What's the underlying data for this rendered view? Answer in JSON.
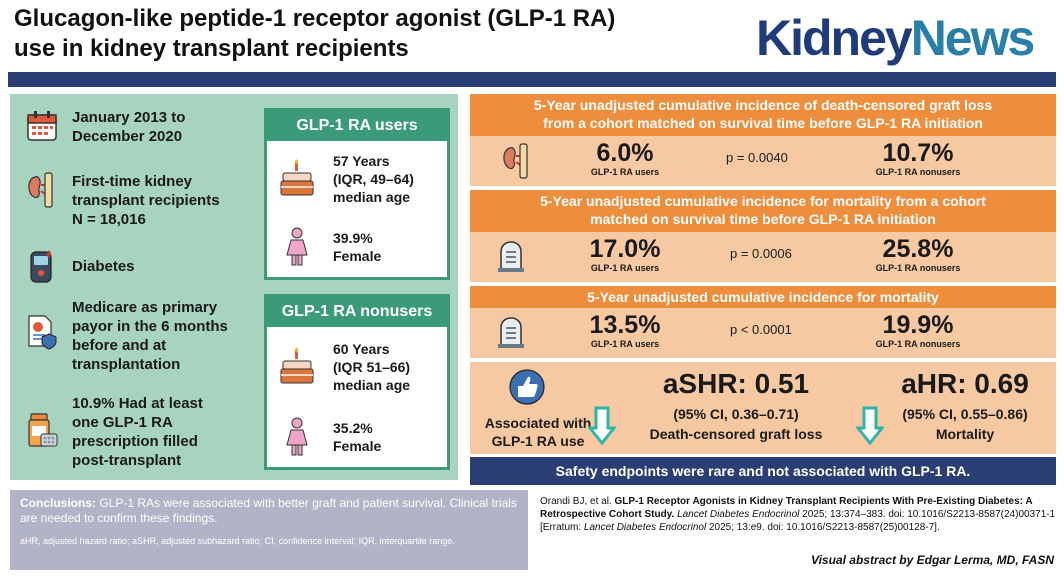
{
  "header": {
    "title_line1": "Glucagon-like peptide-1 receptor agonist (GLP-1 RA)",
    "title_line2": "use in kidney transplant recipients",
    "logo_part1": "Kidney",
    "logo_part2": "News"
  },
  "left": {
    "items": [
      {
        "icon": "calendar-icon",
        "text": "January 2013 to\nDecember 2020"
      },
      {
        "icon": "kidney-icon",
        "text": "First-time kidney\ntransplant recipients\nN = 18,016"
      },
      {
        "icon": "glucose-meter-icon",
        "text": "Diabetes"
      },
      {
        "icon": "insurance-document-icon",
        "text": "Medicare as primary\npayor in the 6 months\nbefore and at\ntransplantation"
      },
      {
        "icon": "pill-bottle-icon",
        "text": "10.9% Had at least\none GLP-1 RA\nprescription filled\npost-transplant"
      }
    ],
    "users": {
      "header": "GLP-1 RA users",
      "age": "57 Years\n(IQR, 49–64)\nmedian age",
      "female": "39.9%\nFemale"
    },
    "nonusers": {
      "header": "GLP-1 RA nonusers",
      "age": "60 Years\n(IQR 51–66)\nmedian age",
      "female": "35.2%\nFemale"
    }
  },
  "panels": [
    {
      "header": "5-Year unadjusted cumulative incidence of death-censored graft loss\nfrom a cohort matched on survival time before GLP-1 RA initiation",
      "icon": "kidney-icon",
      "users_value": "6.0%",
      "users_label": "GLP-1 RA users",
      "p": "p = 0.0040",
      "nonusers_value": "10.7%",
      "nonusers_label": "GLP-1 RA nonusers"
    },
    {
      "header": "5-Year unadjusted cumulative incidence for mortality from a cohort\nmatched on survival time before GLP-1 RA initiation",
      "icon": "tombstone-icon",
      "users_value": "17.0%",
      "users_label": "GLP-1 RA users",
      "p": "p = 0.0006",
      "nonusers_value": "25.8%",
      "nonusers_label": "GLP-1 RA nonusers"
    },
    {
      "header": "5-Year unadjusted cumulative incidence for mortality",
      "icon": "tombstone-icon",
      "users_value": "13.5%",
      "users_label": "GLP-1 RA users",
      "p": "p < 0.0001",
      "nonusers_value": "19.9%",
      "nonusers_label": "GLP-1 RA nonusers"
    }
  ],
  "association": {
    "label": "Associated with\nGLP-1 RA use",
    "ashr_title": "aSHR: 0.51",
    "ashr_ci": "(95% CI, 0.36–0.71)",
    "ashr_outcome": "Death-censored graft loss",
    "ahr_title": "aHR: 0.69",
    "ahr_ci": "(95% CI, 0.55–0.86)",
    "ahr_outcome": "Mortality"
  },
  "safety": "Safety endpoints were rare and not associated with GLP-1 RA.",
  "conclusions": {
    "label": "Conclusions:",
    "text": " GLP-1 RAs were associated with better graft and patient survival. Clinical trials are needed to confirm these findings.",
    "abbrev": "aHR, adjusted hazard ratio; aSHR, adjusted subhazard ratio; CI, confidence interval; IQR, interquartile range."
  },
  "citation": {
    "authors": "Orandi BJ, et al. ",
    "title": "GLP-1 Receptor Agonists in Kidney Transplant Recipients With Pre-Existing Diabetes: A Retrospective Cohort Study.",
    "journal": "Lancet Diabetes Endocrinol",
    "details": " 2025; 13:374–383. doi: 10.1016/S2213-8587(24)00371-1 [Erratum: ",
    "journal2": "Lancet Diabetes Endocrinol",
    "details2": " 2025; 13:e9. doi: 10.1016/S2213-8587(25)00128-7]."
  },
  "credit": "Visual abstract by Edgar Lerma, MD, FASN",
  "colors": {
    "navy": "#2a3e74",
    "green_panel": "#a7d3bf",
    "green_accent": "#3b9a78",
    "orange_header": "#ee8d3c",
    "peach_panel": "#f7c9a3",
    "teal_arrow": "#2cb5a8"
  }
}
